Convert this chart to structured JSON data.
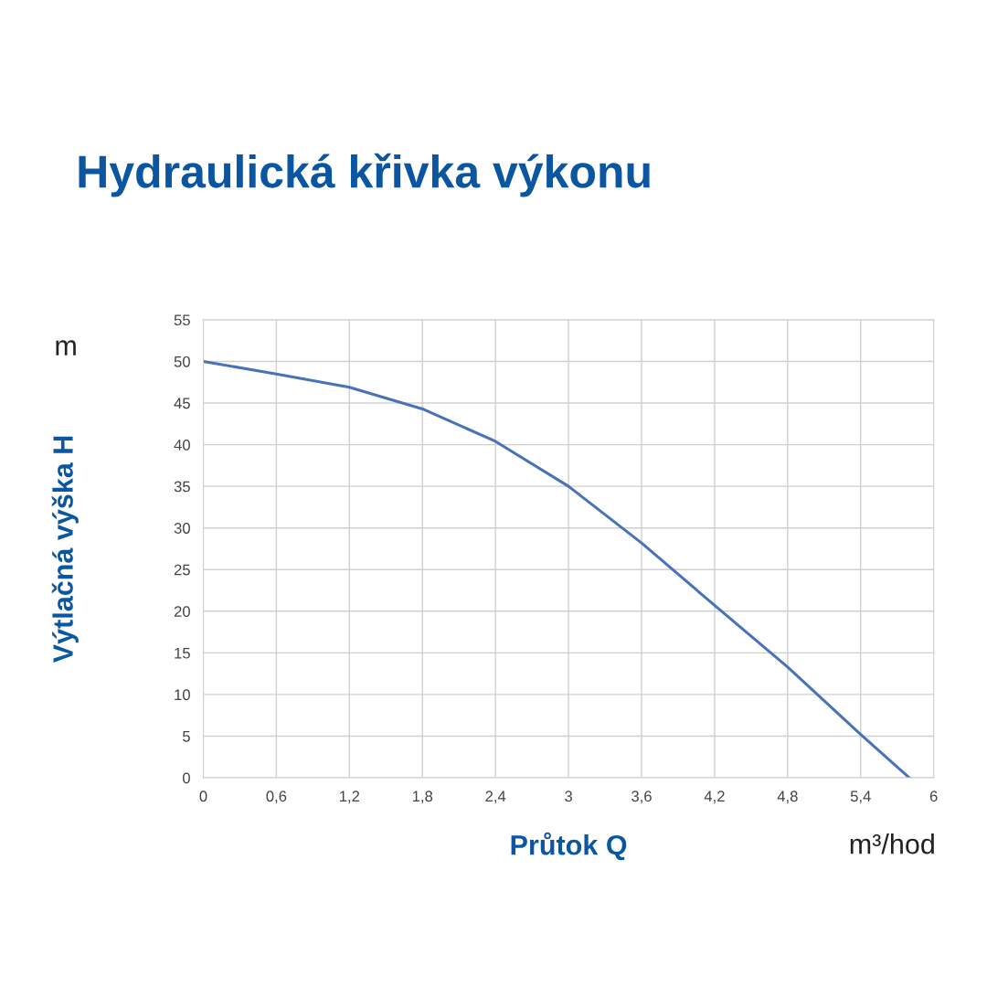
{
  "chart_data": {
    "type": "line",
    "title": "Hydraulická křivka výkonu",
    "xlabel": "Průtok Q",
    "ylabel": "Výtlačná výška H",
    "annotations": [
      "m",
      "m³/hod"
    ],
    "x": [
      0,
      0.6,
      1.2,
      1.8,
      2.4,
      3.0,
      3.6,
      4.2,
      4.8,
      5.4,
      5.8
    ],
    "series": [
      {
        "color": "#4a72b8",
        "values": [
          50,
          48.5,
          46.9,
          44.3,
          40.4,
          35.0,
          28.2,
          20.7,
          13.3,
          5.2,
          0
        ]
      }
    ],
    "xlim": [
      0,
      6
    ],
    "ylim": [
      0,
      55
    ],
    "xticks": [
      0,
      {
        "value": 0.6,
        "label": "0,6"
      },
      {
        "value": 1.2,
        "label": "1,2"
      },
      {
        "value": 1.8,
        "label": "1,8"
      },
      {
        "value": 2.4,
        "label": "2,4"
      },
      3,
      {
        "value": 3.6,
        "label": "3,6"
      },
      {
        "value": 4.2,
        "label": "4,2"
      },
      {
        "value": 4.8,
        "label": "4,8"
      },
      {
        "value": 5.4,
        "label": "5,4"
      },
      6
    ],
    "yticks": [
      0,
      5,
      10,
      15,
      20,
      25,
      30,
      35,
      40,
      45,
      50,
      55
    ],
    "grid": true,
    "legend": false,
    "marker": "none",
    "line_style": "solid"
  }
}
